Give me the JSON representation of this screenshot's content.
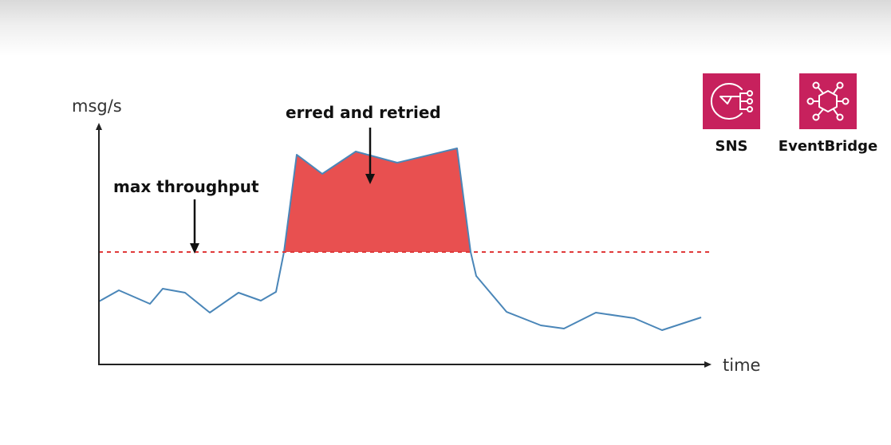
{
  "axes": {
    "y_label": "msg/s",
    "x_label": "time"
  },
  "annotations": {
    "max_throughput": "max throughput",
    "erred_and_retried": "erred and retried"
  },
  "services": [
    {
      "label": "SNS",
      "icon": "sns-icon",
      "color": "#c7215d"
    },
    {
      "label": "EventBridge",
      "icon": "eventbridge-icon",
      "color": "#c7215d"
    }
  ],
  "colors": {
    "line": "#4a86b8",
    "overflow_fill": "#e85050",
    "threshold": "#e03a3a",
    "axis": "#222222"
  }
}
